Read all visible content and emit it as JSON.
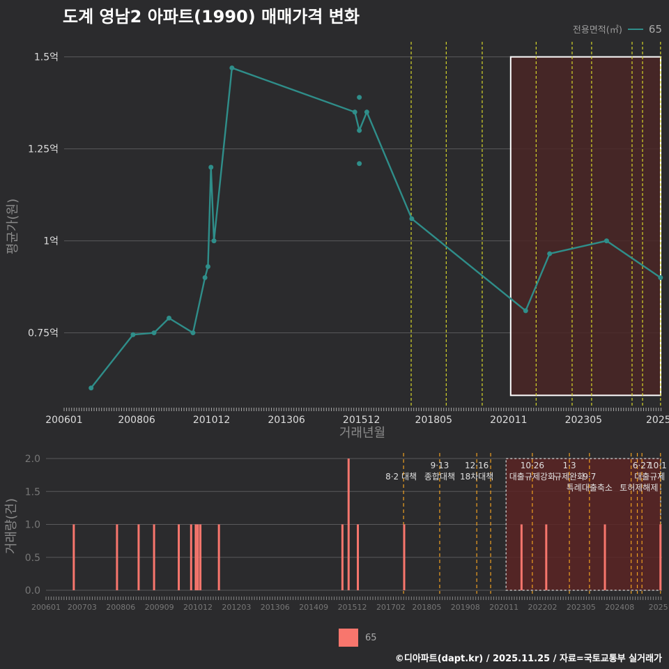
{
  "title": "도계 영남2 아파트(1990) 매매가격 변화",
  "legend": {
    "label": "전용면적(㎡)",
    "value": "65",
    "bar_label": "65"
  },
  "footer": "©디아파트(dapt.kr) / 2025.11.25 / 자료=국토교통부 실거래가",
  "colors": {
    "line": "#2f8e8a",
    "bar": "#f8766d",
    "highlight": "#4a2626",
    "vline_top": "#d6d62a",
    "vline_bottom": "#f0a020"
  },
  "chart_data": [
    {
      "type": "line",
      "ylabel": "평균가(원)",
      "xlabel": "거래년월",
      "ylim": [
        0.58,
        1.5
      ],
      "yticks": [
        0.75,
        1.0,
        1.25,
        1.5
      ],
      "ytick_labels": [
        "0.75억",
        "1억",
        "1.25억",
        "1.5억"
      ],
      "xlim": [
        2006.0,
        2025.95
      ],
      "xticks": [
        2006.0,
        2008.42,
        2010.92,
        2013.42,
        2015.92,
        2018.33,
        2020.83,
        2023.33,
        2025.83
      ],
      "xtick_labels": [
        "200601",
        "200806",
        "201012",
        "201306",
        "201512",
        "201805",
        "202011",
        "202305",
        "2025"
      ],
      "series": [
        {
          "name": "65",
          "points": [
            [
              2006.9,
              0.6
            ],
            [
              2008.3,
              0.745
            ],
            [
              2009.0,
              0.75
            ],
            [
              2009.5,
              0.79
            ],
            [
              2010.3,
              0.75
            ],
            [
              2010.7,
              0.9
            ],
            [
              2010.8,
              0.93
            ],
            [
              2010.9,
              1.2
            ],
            [
              2011.0,
              1.0
            ],
            [
              2011.6,
              1.47
            ],
            [
              2015.7,
              1.35
            ],
            [
              2015.85,
              1.3
            ],
            [
              2016.1,
              1.35
            ],
            [
              2017.6,
              1.06
            ],
            [
              2021.4,
              0.81
            ],
            [
              2022.2,
              0.965
            ],
            [
              2024.1,
              1.0
            ],
            [
              2025.9,
              0.9
            ]
          ],
          "extra_points": [
            [
              2015.85,
              1.39
            ],
            [
              2015.85,
              1.21
            ]
          ]
        }
      ],
      "highlight_range": {
        "x": [
          2020.9,
          2025.95
        ],
        "y": [
          0.58,
          1.5
        ]
      },
      "vlines": [
        2017.58,
        2018.75,
        2019.95,
        2021.75,
        2022.95,
        2023.6,
        2024.95,
        2025.3,
        2025.9
      ]
    },
    {
      "type": "bar",
      "ylabel": "거래량(건)",
      "ylim": [
        0,
        2
      ],
      "yticks": [
        0,
        0.5,
        1,
        1.5,
        2
      ],
      "ytick_labels": [
        "0.0",
        "0.5",
        "1.0",
        "1.5",
        "2.0"
      ],
      "xlim": [
        2006.0,
        2025.95
      ],
      "xticks": [
        2006.0,
        2007.17,
        2008.42,
        2009.67,
        2010.92,
        2012.17,
        2013.42,
        2014.67,
        2015.92,
        2017.17,
        2018.33,
        2019.58,
        2020.83,
        2022.08,
        2023.33,
        2024.58,
        2025.83
      ],
      "xtick_labels": [
        "200601",
        "200703",
        "200806",
        "200909",
        "201012",
        "201203",
        "201306",
        "201409",
        "201512",
        "201702",
        "201805",
        "201908",
        "202011",
        "202202",
        "202305",
        "202408",
        "2025"
      ],
      "bars": [
        [
          2006.9,
          1
        ],
        [
          2008.3,
          1
        ],
        [
          2009.0,
          1
        ],
        [
          2009.5,
          1
        ],
        [
          2010.3,
          1
        ],
        [
          2010.7,
          1
        ],
        [
          2010.85,
          1
        ],
        [
          2010.92,
          1
        ],
        [
          2011.0,
          1
        ],
        [
          2011.6,
          1
        ],
        [
          2015.6,
          1
        ],
        [
          2015.8,
          2
        ],
        [
          2016.1,
          1
        ],
        [
          2017.6,
          1
        ],
        [
          2021.4,
          1
        ],
        [
          2022.2,
          1
        ],
        [
          2024.1,
          1
        ],
        [
          2025.9,
          1
        ]
      ],
      "highlight_range": {
        "x": [
          2020.9,
          2025.95
        ],
        "y": [
          0,
          2
        ]
      },
      "vlines": [
        2017.58,
        2018.75,
        2019.95,
        2020.4,
        2021.75,
        2022.95,
        2023.6,
        2024.95,
        2025.15,
        2025.3,
        2025.9
      ],
      "annotations": [
        {
          "x": 2017.5,
          "row": 1,
          "text": "8·2 대책"
        },
        {
          "x": 2018.75,
          "row": 0,
          "text": "9·13"
        },
        {
          "x": 2018.75,
          "row": 1,
          "text": "종합대책"
        },
        {
          "x": 2019.95,
          "row": 0,
          "text": "12·16"
        },
        {
          "x": 2019.95,
          "row": 1,
          "text": "18차대책"
        },
        {
          "x": 2021.75,
          "row": 0,
          "text": "10·26"
        },
        {
          "x": 2021.75,
          "row": 1,
          "text": "대출규제강화"
        },
        {
          "x": 2022.95,
          "row": 0,
          "text": "1·3"
        },
        {
          "x": 2022.95,
          "row": 1,
          "text": "규제완화"
        },
        {
          "x": 2023.6,
          "row": 1,
          "text": "9·7"
        },
        {
          "x": 2023.6,
          "row": 2,
          "text": "특례대출축소"
        },
        {
          "x": 2025.3,
          "row": 0,
          "text": "6·27"
        },
        {
          "x": 2025.8,
          "row": 0,
          "text": "10·1"
        },
        {
          "x": 2025.55,
          "row": 1,
          "text": "대출규제"
        },
        {
          "x": 2025.2,
          "row": 2,
          "text": "토허제해제"
        }
      ]
    }
  ]
}
